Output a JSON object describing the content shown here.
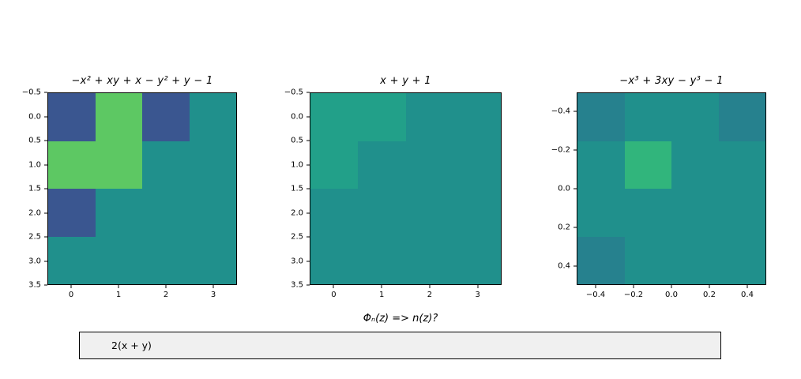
{
  "figure": {
    "background": "#ffffff"
  },
  "palette": {
    "teal": "#20908c",
    "dark_blue": "#3a5690",
    "green": "#5dc863",
    "light_teal": "#22a089",
    "dark_teal": "#26818e",
    "mid_green": "#31b57c"
  },
  "prompt": {
    "label": "Φₙ(z) => n(z)?"
  },
  "textbox": {
    "value": "2(x + y)",
    "background": "#f0f0f0",
    "border_color": "#000000"
  },
  "chart_data": [
    {
      "type": "heatmap",
      "title": "−x² + xy + x − y² + y − 1",
      "xlim": [
        -0.5,
        3.5
      ],
      "ylim": [
        -0.5,
        3.5
      ],
      "xticks": {
        "values": [
          0,
          1,
          2,
          3
        ],
        "labels": [
          "0",
          "1",
          "2",
          "3"
        ]
      },
      "yticks": {
        "values": [
          -0.5,
          0.0,
          0.5,
          1.0,
          1.5,
          2.0,
          2.5,
          3.0,
          3.5
        ],
        "labels": [
          "−0.5",
          "0.0",
          "0.5",
          "1.0",
          "1.5",
          "2.0",
          "2.5",
          "3.0",
          "3.5"
        ]
      },
      "legend": "none",
      "grid": "off",
      "cells": [
        [
          "dark_blue",
          "green",
          "dark_blue",
          "teal"
        ],
        [
          "green",
          "green",
          "teal",
          "teal"
        ],
        [
          "dark_blue",
          "teal",
          "teal",
          "teal"
        ],
        [
          "teal",
          "teal",
          "teal",
          "teal"
        ]
      ]
    },
    {
      "type": "heatmap",
      "title": "x + y + 1",
      "xlim": [
        -0.5,
        3.5
      ],
      "ylim": [
        -0.5,
        3.5
      ],
      "xticks": {
        "values": [
          0,
          1,
          2,
          3
        ],
        "labels": [
          "0",
          "1",
          "2",
          "3"
        ]
      },
      "yticks": {
        "values": [
          -0.5,
          0.0,
          0.5,
          1.0,
          1.5,
          2.0,
          2.5,
          3.0,
          3.5
        ],
        "labels": [
          "−0.5",
          "0.0",
          "0.5",
          "1.0",
          "1.5",
          "2.0",
          "2.5",
          "3.0",
          "3.5"
        ]
      },
      "legend": "none",
      "grid": "off",
      "cells": [
        [
          "light_teal",
          "light_teal",
          "teal",
          "teal"
        ],
        [
          "light_teal",
          "teal",
          "teal",
          "teal"
        ],
        [
          "teal",
          "teal",
          "teal",
          "teal"
        ],
        [
          "teal",
          "teal",
          "teal",
          "teal"
        ]
      ]
    },
    {
      "type": "heatmap",
      "title": "−x³ + 3xy − y³ − 1",
      "xlim": [
        -0.5,
        0.5
      ],
      "ylim": [
        -0.5,
        0.5
      ],
      "xticks": {
        "values": [
          -0.4,
          -0.2,
          0.0,
          0.2,
          0.4
        ],
        "labels": [
          "−0.4",
          "−0.2",
          "0.0",
          "0.2",
          "0.4"
        ]
      },
      "yticks": {
        "values": [
          -0.4,
          -0.2,
          0.0,
          0.2,
          0.4
        ],
        "labels": [
          "−0.4",
          "−0.2",
          "0.0",
          "0.2",
          "0.4"
        ]
      },
      "legend": "none",
      "grid": "off",
      "cells": [
        [
          "dark_teal",
          "teal",
          "teal",
          "dark_teal"
        ],
        [
          "teal",
          "mid_green",
          "teal",
          "teal"
        ],
        [
          "teal",
          "teal",
          "teal",
          "teal"
        ],
        [
          "dark_teal",
          "teal",
          "teal",
          "teal"
        ]
      ]
    }
  ]
}
